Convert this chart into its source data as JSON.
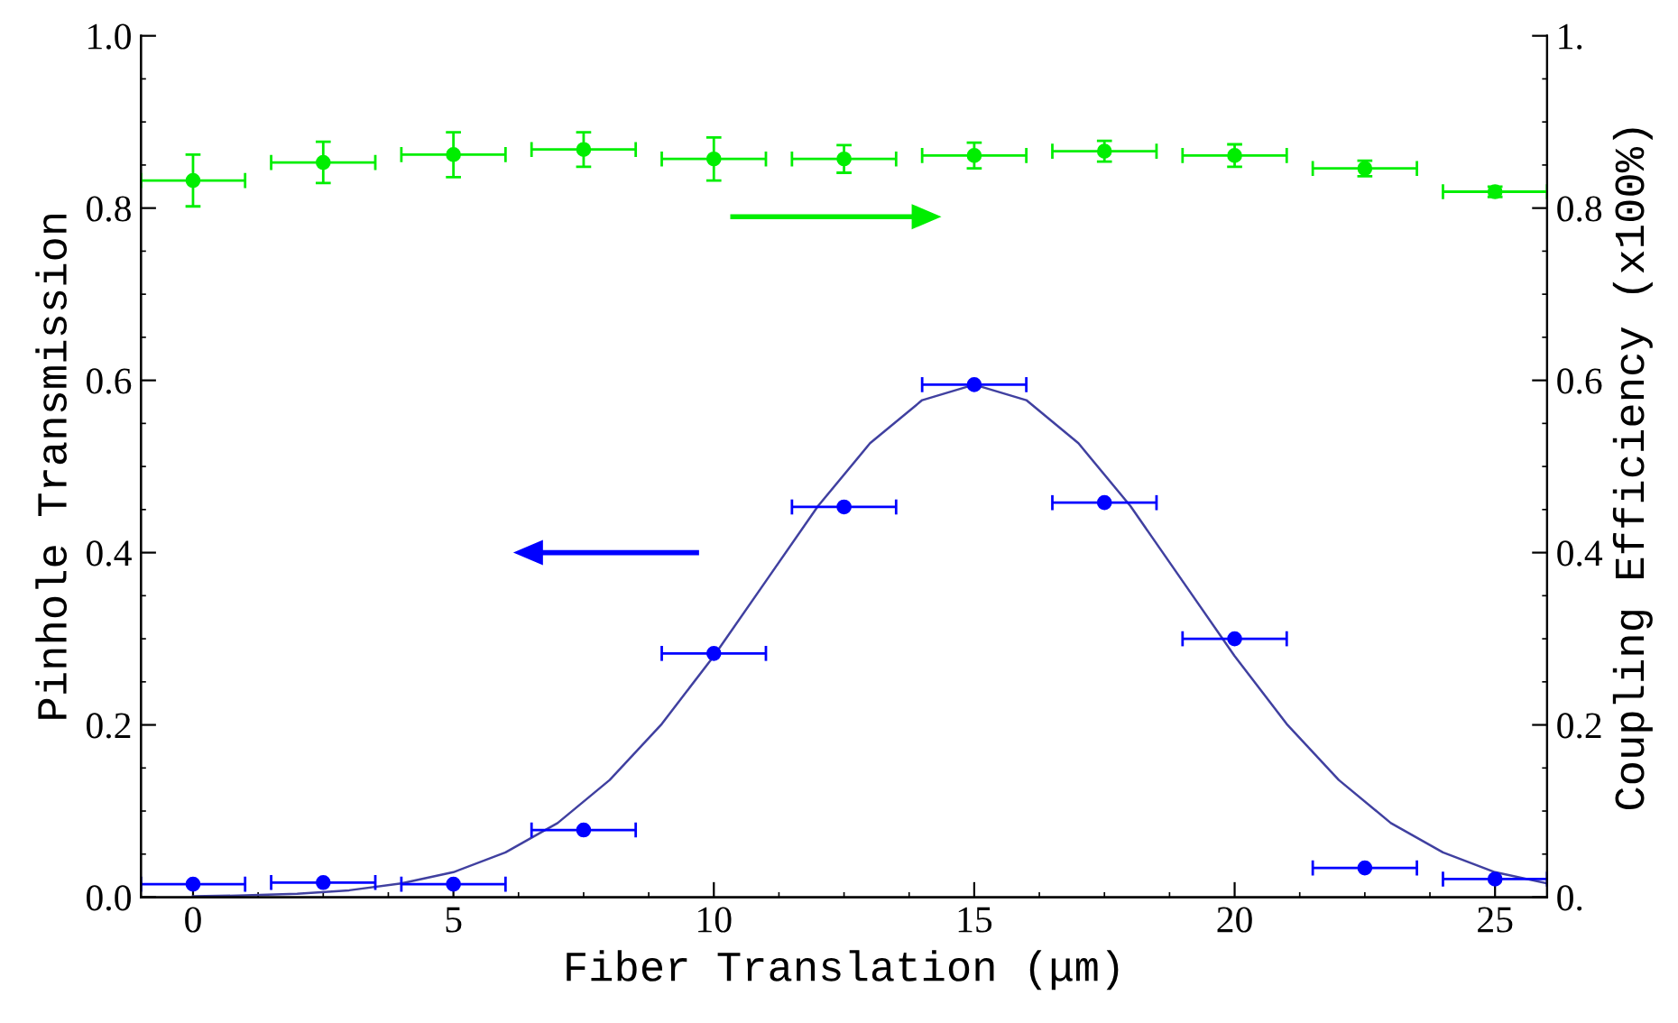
{
  "chart_data": {
    "type": "scatter",
    "xlabel": "Fiber Translation (μm)",
    "ylabel": "Pinhole Transmission",
    "y2label": "Coupling Efficiency (x100%)",
    "xlim": [
      -1,
      26
    ],
    "xticks": [
      0,
      5,
      10,
      15,
      20,
      25
    ],
    "ylim": [
      0,
      1
    ],
    "yticks": [
      {
        "value": 0,
        "label": "0.0"
      },
      {
        "value": 0.2,
        "label": "0.2"
      },
      {
        "value": 0.4,
        "label": "0.4"
      },
      {
        "value": 0.6,
        "label": "0.6"
      },
      {
        "value": 0.8,
        "label": "0.8"
      },
      {
        "value": 1,
        "label": "1.0"
      }
    ],
    "y2lim": [
      0,
      1
    ],
    "y2ticks": [
      {
        "value": 0,
        "label": "0."
      },
      {
        "value": 0.2,
        "label": "0.2"
      },
      {
        "value": 0.4,
        "label": "0.4"
      },
      {
        "value": 0.6,
        "label": "0.6"
      },
      {
        "value": 0.8,
        "label": "0.8"
      },
      {
        "value": 1,
        "label": "1."
      }
    ],
    "grid": false,
    "legend": false,
    "marker": "circle",
    "series": [
      {
        "type": "line",
        "color": "#4040a0",
        "marker": "none",
        "line_style": "solid",
        "x": [
          0,
          1,
          2,
          3,
          4,
          5,
          6,
          7,
          8,
          9,
          10,
          11,
          12,
          13,
          14,
          15,
          16,
          17,
          18,
          19,
          20,
          21,
          22,
          23,
          24,
          25,
          26
        ],
        "values": [
          0.001,
          0.002,
          0.004,
          0.008,
          0.016,
          0.029,
          0.052,
          0.086,
          0.136,
          0.201,
          0.28,
          0.367,
          0.454,
          0.527,
          0.577,
          0.595,
          0.577,
          0.527,
          0.454,
          0.367,
          0.28,
          0.201,
          0.136,
          0.086,
          0.052,
          0.029,
          0.016
        ]
      },
      {
        "color": "#0000ff",
        "x": [
          0,
          2.5,
          5,
          7.5,
          10,
          12.5,
          15,
          17.5,
          20,
          22.5,
          25
        ],
        "values": [
          0.015,
          0.017,
          0.015,
          0.078,
          0.283,
          0.453,
          0.595,
          0.458,
          0.3,
          0.034,
          0.021
        ],
        "xerrors": [
          1,
          1,
          1,
          1,
          1,
          1,
          1,
          1,
          1,
          1,
          1
        ]
      },
      {
        "axis": "y2",
        "color": "#00ee00",
        "x": [
          0,
          2.5,
          5,
          7.5,
          10,
          12.5,
          15,
          17.5,
          20,
          22.5,
          25
        ],
        "values": [
          0.832,
          0.853,
          0.862,
          0.868,
          0.857,
          0.857,
          0.861,
          0.866,
          0.861,
          0.846,
          0.819
        ],
        "errors": [
          0.03,
          0.024,
          0.026,
          0.02,
          0.025,
          0.016,
          0.015,
          0.012,
          0.013,
          0.009,
          0.006
        ],
        "xerrors": [
          1,
          1,
          1,
          1,
          1,
          1,
          1,
          1,
          1,
          1,
          1
        ]
      }
    ]
  }
}
